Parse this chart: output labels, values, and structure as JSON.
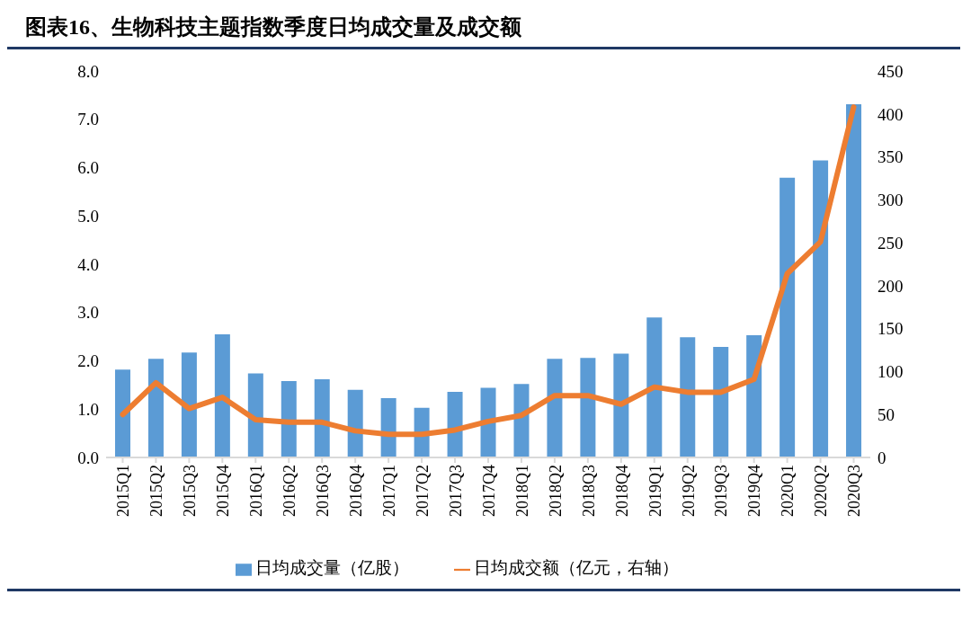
{
  "chart_data": {
    "type": "bar",
    "title": "图表16、生物科技主题指数季度日均成交量及成交额",
    "categories": [
      "2015Q1",
      "2015Q2",
      "2015Q3",
      "2015Q4",
      "2016Q1",
      "2016Q2",
      "2016Q3",
      "2016Q4",
      "2017Q1",
      "2017Q2",
      "2017Q3",
      "2017Q4",
      "2018Q1",
      "2018Q2",
      "2018Q3",
      "2018Q4",
      "2019Q1",
      "2019Q2",
      "2019Q3",
      "2019Q4",
      "2020Q1",
      "2020Q2",
      "2020Q3"
    ],
    "series": [
      {
        "name": "日均成交量（亿股）",
        "color": "#5b9bd5",
        "values": [
          1.82,
          2.04,
          2.17,
          2.55,
          1.74,
          1.58,
          1.62,
          1.4,
          1.23,
          1.03,
          1.36,
          1.44,
          1.52,
          2.04,
          2.06,
          2.15,
          2.9,
          2.49,
          2.29,
          2.53,
          5.79,
          6.15,
          7.31
        ]
      },
      {
        "name": "日均成交额（亿元，右轴）",
        "type": "line",
        "axis": "y2",
        "color": "#ed7d31",
        "values": [
          50,
          87,
          57,
          70,
          44,
          41,
          41,
          31,
          27,
          27,
          32,
          42,
          49,
          72,
          72,
          62,
          82,
          76,
          76,
          91,
          214,
          251,
          408
        ]
      }
    ],
    "ylim": [
      0,
      8
    ],
    "yticks": [
      {
        "value": 0,
        "label": "0.0"
      },
      {
        "value": 1,
        "label": "1.0"
      },
      {
        "value": 2,
        "label": "2.0"
      },
      {
        "value": 3,
        "label": "3.0"
      },
      {
        "value": 4,
        "label": "4.0"
      },
      {
        "value": 5,
        "label": "5.0"
      },
      {
        "value": 6,
        "label": "6.0"
      },
      {
        "value": 7,
        "label": "7.0"
      },
      {
        "value": 8,
        "label": "8.0"
      }
    ],
    "y2lim": [
      0,
      450
    ],
    "y2ticks": [
      0,
      50,
      100,
      150,
      200,
      250,
      300,
      350,
      400,
      450
    ],
    "grid": false,
    "legend": "bottom",
    "marker": "none",
    "line_style": "solid"
  }
}
